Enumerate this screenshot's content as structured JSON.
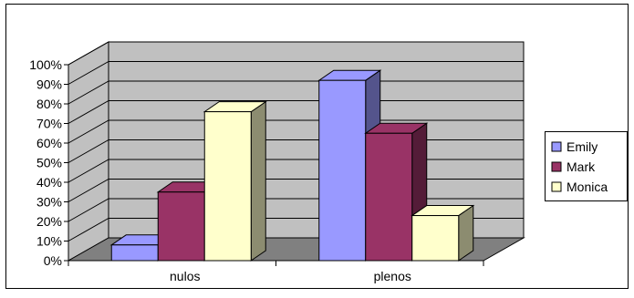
{
  "chart_data": {
    "type": "bar",
    "title": "",
    "xlabel": "",
    "ylabel": "",
    "categories": [
      "nulos",
      "plenos"
    ],
    "series": [
      {
        "name": "Emily",
        "values": [
          8,
          92
        ],
        "color": "#9999ff"
      },
      {
        "name": "Mark",
        "values": [
          35,
          65
        ],
        "color": "#993366"
      },
      {
        "name": "Monica",
        "values": [
          76,
          23
        ],
        "color": "#ffffcc"
      }
    ],
    "ylim": [
      0,
      100
    ],
    "y_ticks": [
      "0%",
      "10%",
      "20%",
      "30%",
      "40%",
      "50%",
      "60%",
      "70%",
      "80%",
      "90%",
      "100%"
    ],
    "grid": true,
    "three_d": true,
    "legend_position": "right",
    "colors": {
      "wall": "#c0c0c0",
      "floor": "#808080",
      "frame": "#000000"
    }
  }
}
